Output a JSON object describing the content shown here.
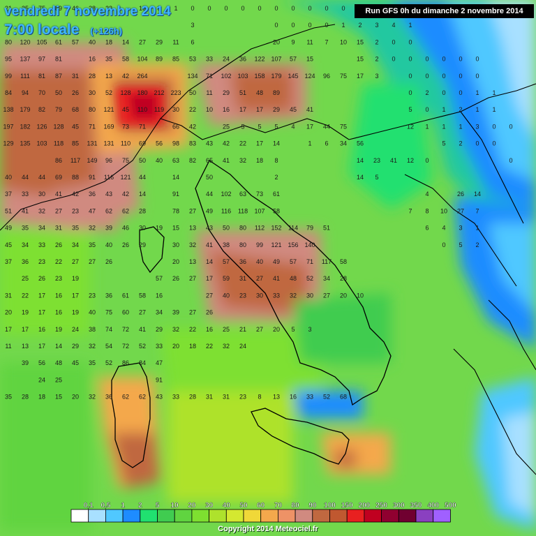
{
  "header": {
    "date_line": "vendredi 7 novembre 2014",
    "time_line": "7:00 locale",
    "lead_time": "(+126h)",
    "run_info": "Run GFS 0h du dimanche 2 novembre 2014"
  },
  "legend": {
    "labels": [
      "0,1",
      "0,5",
      "1",
      "2",
      "5",
      "10",
      "20",
      "30",
      "40",
      "50",
      "60",
      "70",
      "80",
      "90",
      "100",
      "150",
      "200",
      "250",
      "300",
      "350",
      "400",
      "500"
    ],
    "colors": [
      "#ffffff",
      "#a8e0ff",
      "#50c8ff",
      "#1e8cff",
      "#20e070",
      "#40cc50",
      "#60d440",
      "#7ee030",
      "#aee22c",
      "#d4e830",
      "#f0d838",
      "#f4a84c",
      "#ee9266",
      "#d08a80",
      "#c06840",
      "#c05830",
      "#e82020",
      "#c00020",
      "#900030",
      "#700030",
      "#8a40c0",
      "#a060ff"
    ]
  },
  "copyright": "Copyright 2014 Meteociel.fr",
  "grid_values": [
    [
      "21",
      "35",
      "75",
      "89",
      "46",
      "28",
      "23",
      "",
      "10",
      "9",
      "1",
      "0",
      "0",
      "0",
      "0",
      "0",
      "0",
      "0",
      "0",
      "0",
      "0",
      "0",
      "0",
      "0",
      "0",
      "0",
      "0",
      "0",
      "0",
      "0",
      "0",
      "0"
    ],
    [
      "",
      "",
      "",
      "",
      "",
      "",
      "",
      "",
      "",
      "",
      "",
      "3",
      "",
      "",
      "",
      "",
      "0",
      "0",
      "0",
      "0",
      "1",
      "2",
      "3",
      "4",
      "1",
      "",
      "",
      "",
      "",
      "",
      "",
      ""
    ],
    [
      "80",
      "120",
      "105",
      "61",
      "57",
      "40",
      "18",
      "14",
      "27",
      "29",
      "11",
      "6",
      "",
      "",
      "",
      "",
      "20",
      "9",
      "11",
      "7",
      "10",
      "15",
      "2",
      "0",
      "0",
      "",
      "",
      "",
      "",
      "",
      "",
      ""
    ],
    [
      "95",
      "137",
      "97",
      "81",
      "",
      "16",
      "35",
      "58",
      "104",
      "89",
      "85",
      "53",
      "33",
      "24",
      "36",
      "122",
      "107",
      "57",
      "15",
      "",
      "",
      "15",
      "2",
      "0",
      "0",
      "0",
      "0",
      "0",
      "0",
      "",
      "",
      ""
    ],
    [
      "99",
      "111",
      "81",
      "87",
      "31",
      "28",
      "13",
      "42",
      "264",
      "",
      "",
      "134",
      "71",
      "102",
      "103",
      "158",
      "179",
      "145",
      "124",
      "96",
      "75",
      "17",
      "3",
      "",
      "0",
      "0",
      "0",
      "0",
      "0",
      "",
      "",
      ""
    ],
    [
      "84",
      "94",
      "70",
      "50",
      "26",
      "30",
      "52",
      "128",
      "180",
      "212",
      "223",
      "50",
      "11",
      "29",
      "51",
      "48",
      "89",
      "",
      "",
      "",
      "",
      "",
      "",
      "",
      "0",
      "2",
      "0",
      "0",
      "1",
      "1",
      "",
      ""
    ],
    [
      "138",
      "179",
      "82",
      "79",
      "68",
      "80",
      "121",
      "45",
      "110",
      "119",
      "30",
      "22",
      "10",
      "16",
      "17",
      "17",
      "29",
      "45",
      "41",
      "",
      "",
      "",
      "",
      "",
      "5",
      "0",
      "1",
      "2",
      "1",
      "1",
      "",
      ""
    ],
    [
      "197",
      "182",
      "126",
      "128",
      "45",
      "71",
      "169",
      "73",
      "71",
      "",
      "66",
      "42",
      "",
      "25",
      "5",
      "5",
      "5",
      "4",
      "17",
      "44",
      "75",
      "",
      "",
      "",
      "12",
      "1",
      "1",
      "1",
      "3",
      "0",
      "0",
      ""
    ],
    [
      "129",
      "135",
      "103",
      "118",
      "85",
      "131",
      "131",
      "110",
      "69",
      "56",
      "98",
      "83",
      "43",
      "42",
      "22",
      "17",
      "14",
      "",
      "1",
      "6",
      "34",
      "56",
      "",
      "",
      "",
      "",
      "5",
      "2",
      "0",
      "0",
      "",
      ""
    ],
    [
      "",
      "",
      "",
      "86",
      "117",
      "149",
      "96",
      "75",
      "50",
      "40",
      "63",
      "82",
      "65",
      "41",
      "32",
      "18",
      "8",
      "",
      "",
      "",
      "",
      "14",
      "23",
      "41",
      "12",
      "0",
      "",
      "",
      "",
      "",
      "0",
      ""
    ],
    [
      "40",
      "44",
      "44",
      "69",
      "88",
      "91",
      "116",
      "121",
      "44",
      "",
      "14",
      "",
      "50",
      "",
      "",
      "",
      "2",
      "",
      "",
      "",
      "",
      "14",
      "5",
      "",
      "",
      "",
      "",
      "",
      "",
      "",
      "",
      ""
    ],
    [
      "37",
      "33",
      "30",
      "41",
      "42",
      "36",
      "43",
      "42",
      "14",
      "",
      "91",
      "",
      "44",
      "102",
      "63",
      "73",
      "61",
      "",
      "",
      "",
      "",
      "",
      "",
      "",
      "",
      "4",
      "",
      "26",
      "14",
      "",
      "",
      ""
    ],
    [
      "51",
      "41",
      "32",
      "27",
      "23",
      "47",
      "62",
      "62",
      "28",
      "",
      "78",
      "27",
      "49",
      "116",
      "118",
      "107",
      "58",
      "",
      "",
      "",
      "",
      "",
      "",
      "",
      "7",
      "8",
      "10",
      "27",
      "7",
      "",
      "",
      ""
    ],
    [
      "49",
      "35",
      "34",
      "31",
      "35",
      "32",
      "39",
      "46",
      "30",
      "19",
      "15",
      "13",
      "43",
      "50",
      "80",
      "112",
      "152",
      "114",
      "79",
      "51",
      "",
      "",
      "",
      "",
      "",
      "6",
      "4",
      "3",
      "1",
      "",
      "",
      ""
    ],
    [
      "45",
      "34",
      "33",
      "26",
      "34",
      "35",
      "40",
      "26",
      "29",
      "",
      "30",
      "32",
      "41",
      "38",
      "80",
      "99",
      "121",
      "156",
      "140",
      "",
      "",
      "",
      "",
      "",
      "",
      "",
      "0",
      "5",
      "2",
      "",
      "",
      ""
    ],
    [
      "37",
      "36",
      "23",
      "22",
      "27",
      "27",
      "26",
      "",
      "",
      "",
      "20",
      "13",
      "14",
      "57",
      "36",
      "40",
      "49",
      "57",
      "71",
      "117",
      "58",
      "",
      "",
      "",
      "",
      "",
      "",
      "",
      "",
      "",
      "",
      ""
    ],
    [
      "",
      "25",
      "26",
      "23",
      "19",
      "",
      "",
      "",
      "",
      "57",
      "26",
      "27",
      "17",
      "59",
      "31",
      "27",
      "41",
      "48",
      "52",
      "34",
      "28",
      "",
      "",
      "",
      "",
      "",
      "",
      "",
      "",
      "",
      "",
      ""
    ],
    [
      "31",
      "22",
      "17",
      "16",
      "17",
      "23",
      "36",
      "61",
      "58",
      "16",
      "",
      "",
      "27",
      "40",
      "23",
      "30",
      "33",
      "32",
      "30",
      "27",
      "20",
      "10",
      "",
      "",
      "",
      "",
      "",
      "",
      "",
      "",
      "",
      ""
    ],
    [
      "20",
      "19",
      "17",
      "16",
      "19",
      "40",
      "75",
      "60",
      "27",
      "34",
      "39",
      "27",
      "26",
      "",
      "",
      "",
      "",
      "",
      "",
      "",
      "",
      "",
      "",
      "",
      "",
      "",
      "",
      "",
      "",
      "",
      "",
      ""
    ],
    [
      "17",
      "17",
      "16",
      "19",
      "24",
      "38",
      "74",
      "72",
      "41",
      "29",
      "32",
      "22",
      "16",
      "25",
      "21",
      "27",
      "20",
      "5",
      "3",
      "",
      "",
      "",
      "",
      "",
      "",
      "",
      "",
      "",
      "",
      "",
      "",
      ""
    ],
    [
      "11",
      "13",
      "17",
      "14",
      "29",
      "32",
      "54",
      "72",
      "52",
      "33",
      "20",
      "18",
      "22",
      "32",
      "24",
      "",
      "",
      "",
      "",
      "",
      "",
      "",
      "",
      "",
      "",
      "",
      "",
      "",
      "",
      "",
      "",
      ""
    ],
    [
      "",
      "39",
      "56",
      "48",
      "45",
      "35",
      "52",
      "86",
      "84",
      "47",
      "",
      "",
      "",
      "",
      "",
      "",
      "",
      "",
      "",
      "",
      "",
      "",
      "",
      "",
      "",
      "",
      "",
      "",
      "",
      "",
      "",
      ""
    ],
    [
      "",
      "",
      "24",
      "25",
      "",
      "",
      "",
      "",
      "",
      "91",
      "",
      "",
      "",
      "",
      "",
      "",
      "",
      "",
      "",
      "",
      "",
      "",
      "",
      "",
      "",
      "",
      "",
      "",
      "",
      "",
      "",
      ""
    ],
    [
      "35",
      "28",
      "18",
      "15",
      "20",
      "32",
      "36",
      "62",
      "62",
      "43",
      "33",
      "28",
      "31",
      "31",
      "23",
      "8",
      "13",
      "16",
      "33",
      "52",
      "68",
      "",
      "",
      "",
      "",
      "",
      "",
      "",
      "",
      "",
      "",
      ""
    ],
    [
      "",
      "",
      "",
      "",
      "",
      "",
      "",
      "",
      "",
      "",
      "",
      "",
      "",
      "",
      "",
      "",
      "",
      "",
      "",
      "",
      "",
      "",
      "",
      "",
      "",
      "",
      "",
      "",
      "",
      "",
      "",
      ""
    ],
    [
      "",
      "",
      "",
      "",
      "",
      "",
      "",
      "",
      "",
      "",
      "",
      "",
      "",
      "",
      "",
      "",
      "",
      "",
      "",
      "",
      "",
      "",
      "",
      "",
      "",
      "",
      "",
      "",
      "",
      "",
      "",
      ""
    ]
  ]
}
